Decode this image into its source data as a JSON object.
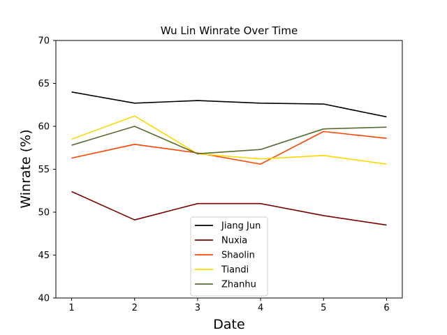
{
  "chart_data": {
    "type": "line",
    "title": "Wu Lin Winrate Over Time",
    "xlabel": "Date",
    "ylabel": "Winrate (%)",
    "x": [
      1,
      2,
      3,
      4,
      5,
      6
    ],
    "xticks": [
      "1",
      "2",
      "3",
      "4",
      "5",
      "6"
    ],
    "xlim": [
      0.75,
      6.25
    ],
    "ylim": [
      40,
      70
    ],
    "yticks": [
      "40",
      "45",
      "50",
      "55",
      "60",
      "65",
      "70"
    ],
    "grid": false,
    "legend_position": "bottom-center",
    "series": [
      {
        "name": "Jiang Jun",
        "color": "#000000",
        "values": [
          64.0,
          62.7,
          63.0,
          62.7,
          62.6,
          61.1
        ]
      },
      {
        "name": "Nuxia",
        "color": "#7f0000",
        "values": [
          52.4,
          49.1,
          51.0,
          51.0,
          49.6,
          48.5
        ]
      },
      {
        "name": "Shaolin",
        "color": "#ff4500",
        "values": [
          56.3,
          57.9,
          56.9,
          55.6,
          59.4,
          58.6
        ]
      },
      {
        "name": "Tiandi",
        "color": "#ffd700",
        "values": [
          58.5,
          61.2,
          56.8,
          56.2,
          56.6,
          55.6
        ]
      },
      {
        "name": "Zhanhu",
        "color": "#556b2f",
        "values": [
          57.8,
          60.0,
          56.8,
          57.3,
          59.7,
          59.9
        ]
      }
    ]
  }
}
